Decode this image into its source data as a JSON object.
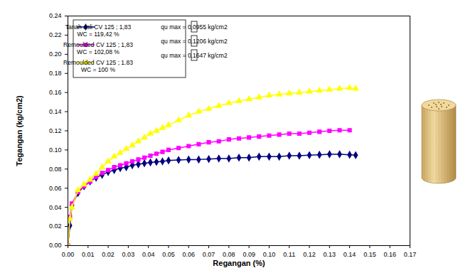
{
  "chart_data": {
    "type": "line",
    "x_label": "Regangan (%)",
    "y_label": "Tegangan (kg/cm2)",
    "xlim": [
      0,
      0.17
    ],
    "ylim": [
      0,
      0.24
    ],
    "xticks": [
      {
        "value": 0,
        "label": "0.00"
      },
      0.01,
      0.02,
      0.03,
      0.04,
      0.05,
      0.06,
      0.07,
      0.08,
      0.09,
      {
        "value": 0.1,
        "label": "0.10"
      },
      0.11,
      0.12,
      0.13,
      0.14,
      0.15,
      0.16,
      0.17
    ],
    "yticks": [
      {
        "value": 0,
        "label": "0.00"
      },
      0.02,
      0.04,
      0.06,
      0.08,
      {
        "value": 0.1,
        "label": "0.10"
      },
      0.12,
      0.14,
      0.16,
      0.18,
      {
        "value": 0.2,
        "label": "0.20"
      },
      0.22,
      0.24
    ],
    "grid": false,
    "legend": "top-left",
    "x": [
      0,
      0.001,
      0.002,
      0.005,
      0.008,
      0.011,
      0.014,
      0.017,
      0.02,
      0.023,
      0.026,
      0.029,
      0.032,
      0.035,
      0.038,
      0.041,
      0.044,
      0.047,
      0.05,
      0.055,
      0.06,
      0.065,
      0.07,
      0.075,
      0.08,
      0.085,
      0.09,
      0.095,
      0.1,
      0.105,
      0.11,
      0.115,
      0.12,
      0.125,
      0.13,
      0.135,
      0.14,
      0.143
    ],
    "series": [
      {
        "name": "Tanah asli CV 125 ; 1,83\nWC = 119,42 %",
        "color": "#000080",
        "marker": "diamond",
        "line_style": "solid",
        "values": [
          0,
          0.021,
          0.042,
          0.055,
          0.062,
          0.067,
          0.071,
          0.074,
          0.077,
          0.079,
          0.081,
          0.082,
          0.084,
          0.085,
          0.086,
          0.087,
          0.0875,
          0.088,
          0.089,
          0.0895,
          0.09,
          0.09,
          0.0905,
          0.091,
          0.091,
          0.092,
          0.092,
          0.093,
          0.093,
          0.093,
          0.094,
          0.094,
          0.0945,
          0.095,
          0.0955,
          0.0955,
          0.095,
          0.0945
        ]
      },
      {
        "name": "Remoulded CV 125 ; 1,83\nWC = 102,08 %",
        "color": "#ff00ff",
        "marker": "square",
        "line_style": "solid",
        "values": [
          0,
          0.03,
          0.044,
          0.056,
          0.062,
          0.067,
          0.072,
          0.076,
          0.079,
          0.082,
          0.084,
          0.086,
          0.088,
          0.09,
          0.092,
          0.094,
          0.096,
          0.098,
          0.1,
          0.102,
          0.104,
          0.106,
          0.108,
          0.109,
          0.111,
          0.112,
          0.113,
          0.114,
          0.115,
          0.116,
          0.117,
          0.117,
          0.118,
          0.119,
          0.12,
          0.1206,
          0.1206,
          null
        ]
      },
      {
        "name": "Remoulded CV 125 ; 1.83\nWC = 100 %",
        "color": "#ffff00",
        "marker": "triangle",
        "line_style": "solid",
        "values": [
          0,
          0.028,
          0.04,
          0.058,
          0.064,
          0.069,
          0.075,
          0.082,
          0.088,
          0.093,
          0.097,
          0.101,
          0.105,
          0.109,
          0.113,
          0.117,
          0.12,
          0.123,
          0.126,
          0.131,
          0.136,
          0.14,
          0.143,
          0.146,
          0.149,
          0.151,
          0.153,
          0.155,
          0.157,
          0.158,
          0.159,
          0.16,
          0.161,
          0.162,
          0.163,
          0.164,
          0.1647,
          0.164
        ]
      }
    ],
    "annotations": [
      "qu max = 0,0955 kg/cm2",
      "qu max = 0,1206 kg/cm2",
      "qu max = 0,1647 kg/cm2"
    ]
  }
}
